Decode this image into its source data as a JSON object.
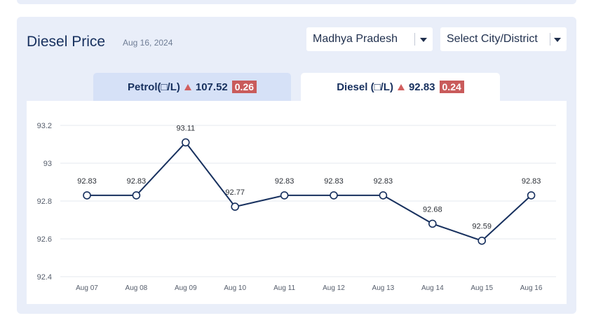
{
  "header": {
    "title": "Diesel Price",
    "date": "Aug 16, 2024"
  },
  "selects": {
    "state": "Madhya Pradesh",
    "city": "Select City/District"
  },
  "tabs": {
    "petrol": {
      "label": "Petrol(□/L)",
      "price": "107.52",
      "change": "0.26"
    },
    "diesel": {
      "label": "Diesel (□/L)",
      "price": "92.83",
      "change": "0.24"
    }
  },
  "colors": {
    "line": "#17305e",
    "badge": "#c95b5b",
    "up_arrow": "#d15f5f",
    "card_bg": "#e9eef9"
  },
  "chart_data": {
    "type": "line",
    "categories": [
      "Aug 07",
      "Aug 08",
      "Aug 09",
      "Aug 10",
      "Aug 11",
      "Aug 12",
      "Aug 13",
      "Aug 14",
      "Aug 15",
      "Aug 16"
    ],
    "values": [
      92.83,
      92.83,
      93.11,
      92.77,
      92.83,
      92.83,
      92.83,
      92.68,
      92.59,
      92.83
    ],
    "data_labels": [
      "92.83",
      "92.83",
      "93.11",
      "92.77",
      "92.83",
      "92.83",
      "92.83",
      "92.68",
      "92.59",
      "92.83"
    ],
    "yticks": [
      "93.2",
      "93",
      "92.8",
      "92.6",
      "92.4"
    ],
    "ylim": [
      92.4,
      93.2
    ],
    "grid": true
  }
}
